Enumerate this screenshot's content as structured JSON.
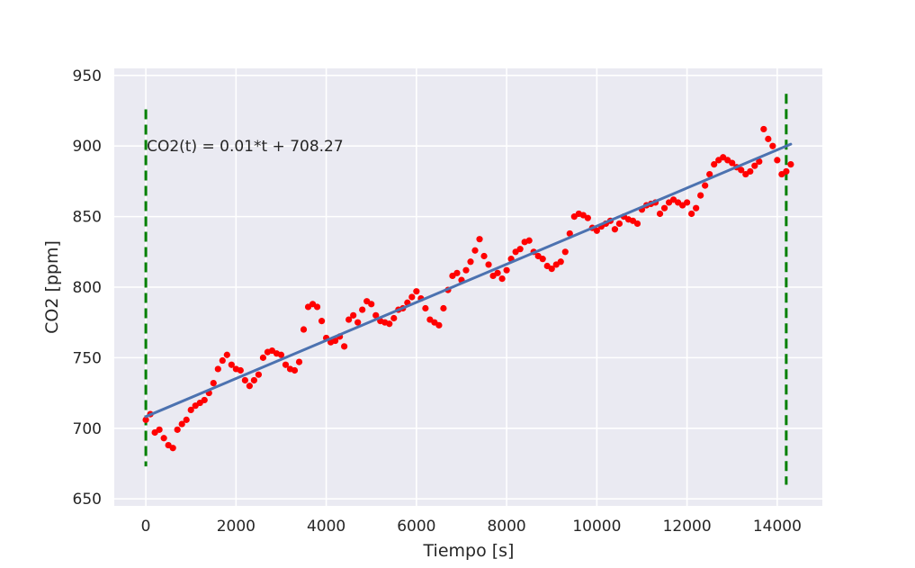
{
  "chart_data": {
    "type": "scatter",
    "title": "",
    "xlabel": "Tiempo [s]",
    "ylabel": "CO2 [ppm]",
    "xlim": [
      -700,
      15000
    ],
    "ylim": [
      645,
      955
    ],
    "xticks": [
      0,
      2000,
      4000,
      6000,
      8000,
      10000,
      12000,
      14000
    ],
    "yticks": [
      650,
      700,
      750,
      800,
      850,
      900,
      950
    ],
    "grid": true,
    "background": "#eaeaf2",
    "annotation": "CO2(t) = 0.01*t + 708.27",
    "fit_line": {
      "slope": 0.0135,
      "intercept": 708.27,
      "x_range": [
        0,
        14300
      ],
      "color": "#4c72b0"
    },
    "vlines": [
      {
        "x": 0,
        "ymin": 673,
        "ymax": 926,
        "color": "#008000",
        "style": "dashed"
      },
      {
        "x": 14200,
        "ymin": 660,
        "ymax": 937,
        "color": "#008000",
        "style": "dashed"
      }
    ],
    "series": [
      {
        "color": "#ff0000",
        "x": [
          0,
          100,
          200,
          300,
          400,
          500,
          600,
          700,
          800,
          900,
          1000,
          1100,
          1200,
          1300,
          1400,
          1500,
          1600,
          1700,
          1800,
          1900,
          2000,
          2100,
          2200,
          2300,
          2400,
          2500,
          2600,
          2700,
          2800,
          2900,
          3000,
          3100,
          3200,
          3300,
          3400,
          3500,
          3600,
          3700,
          3800,
          3900,
          4000,
          4100,
          4200,
          4300,
          4400,
          4500,
          4600,
          4700,
          4800,
          4900,
          5000,
          5100,
          5200,
          5300,
          5400,
          5500,
          5600,
          5700,
          5800,
          5900,
          6000,
          6100,
          6200,
          6300,
          6400,
          6500,
          6600,
          6700,
          6800,
          6900,
          7000,
          7100,
          7200,
          7300,
          7400,
          7500,
          7600,
          7700,
          7800,
          7900,
          8000,
          8100,
          8200,
          8300,
          8400,
          8500,
          8600,
          8700,
          8800,
          8900,
          9000,
          9100,
          9200,
          9300,
          9400,
          9500,
          9600,
          9700,
          9800,
          9900,
          10000,
          10100,
          10200,
          10300,
          10400,
          10500,
          10600,
          10700,
          10800,
          10900,
          11000,
          11100,
          11200,
          11300,
          11400,
          11500,
          11600,
          11700,
          11800,
          11900,
          12000,
          12100,
          12200,
          12300,
          12400,
          12500,
          12600,
          12700,
          12800,
          12900,
          13000,
          13100,
          13200,
          13300,
          13400,
          13500,
          13600,
          13700,
          13800,
          13900,
          14000,
          14100,
          14200,
          14300
        ],
        "y": [
          706,
          710,
          697,
          699,
          693,
          688,
          686,
          699,
          703,
          706,
          713,
          716,
          718,
          720,
          725,
          732,
          742,
          748,
          752,
          745,
          742,
          741,
          734,
          730,
          734,
          738,
          750,
          754,
          755,
          753,
          752,
          745,
          742,
          741,
          747,
          770,
          786,
          788,
          786,
          776,
          764,
          761,
          762,
          765,
          758,
          777,
          780,
          775,
          784,
          790,
          788,
          780,
          776,
          775,
          774,
          778,
          784,
          785,
          789,
          793,
          797,
          792,
          785,
          777,
          775,
          773,
          785,
          798,
          808,
          810,
          805,
          812,
          818,
          826,
          834,
          822,
          816,
          808,
          810,
          806,
          812,
          820,
          825,
          827,
          832,
          833,
          825,
          822,
          820,
          815,
          813,
          816,
          818,
          825,
          838,
          850,
          852,
          851,
          849,
          842,
          840,
          843,
          845,
          847,
          841,
          845,
          850,
          848,
          847,
          845,
          855,
          858,
          859,
          860,
          852,
          856,
          860,
          862,
          860,
          858,
          860,
          852,
          856,
          865,
          872,
          880,
          887,
          890,
          892,
          890,
          888,
          885,
          883,
          880,
          882,
          886,
          889,
          912,
          905,
          900,
          890,
          880,
          882,
          887
        ]
      }
    ]
  }
}
